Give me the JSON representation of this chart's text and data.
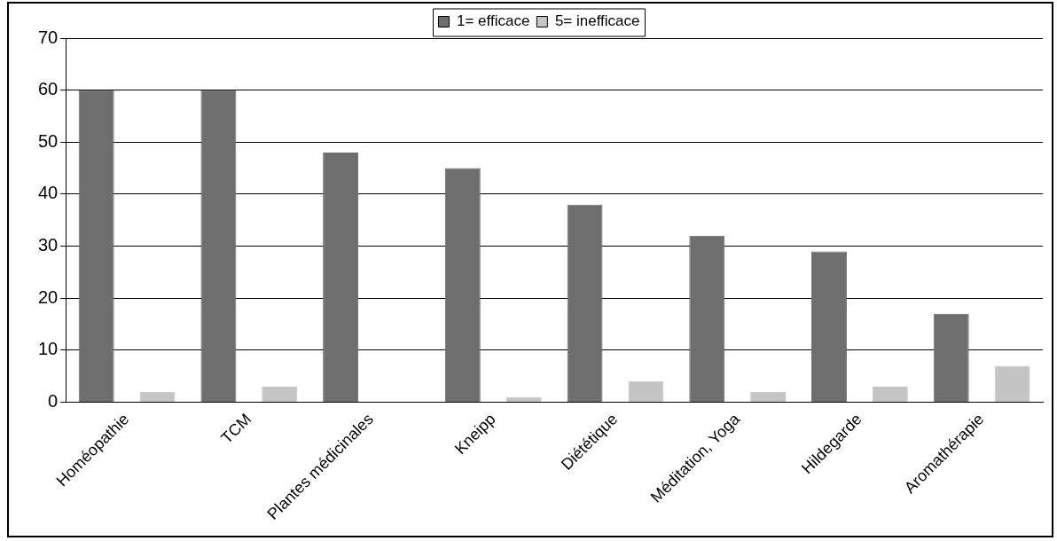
{
  "chart_data": {
    "type": "bar",
    "categories": [
      "Homéopathie",
      "TCM",
      "Plantes médicinales",
      "Kneipp",
      "Diététique",
      "Méditation, Yoga",
      "Hildegarde",
      "Aromathérapie"
    ],
    "series": [
      {
        "name": "1= efficace",
        "color": "#6e6e6e",
        "values": [
          60,
          60,
          48,
          45,
          38,
          32,
          29,
          17
        ]
      },
      {
        "name": "5= inefficace",
        "color": "#c4c4c4",
        "values": [
          2,
          3,
          0,
          1,
          4,
          2,
          3,
          7
        ]
      }
    ],
    "ylim": [
      0,
      70
    ],
    "yticks": [
      0,
      10,
      20,
      30,
      40,
      50,
      60,
      70
    ],
    "grid": "y",
    "legend": "top"
  }
}
